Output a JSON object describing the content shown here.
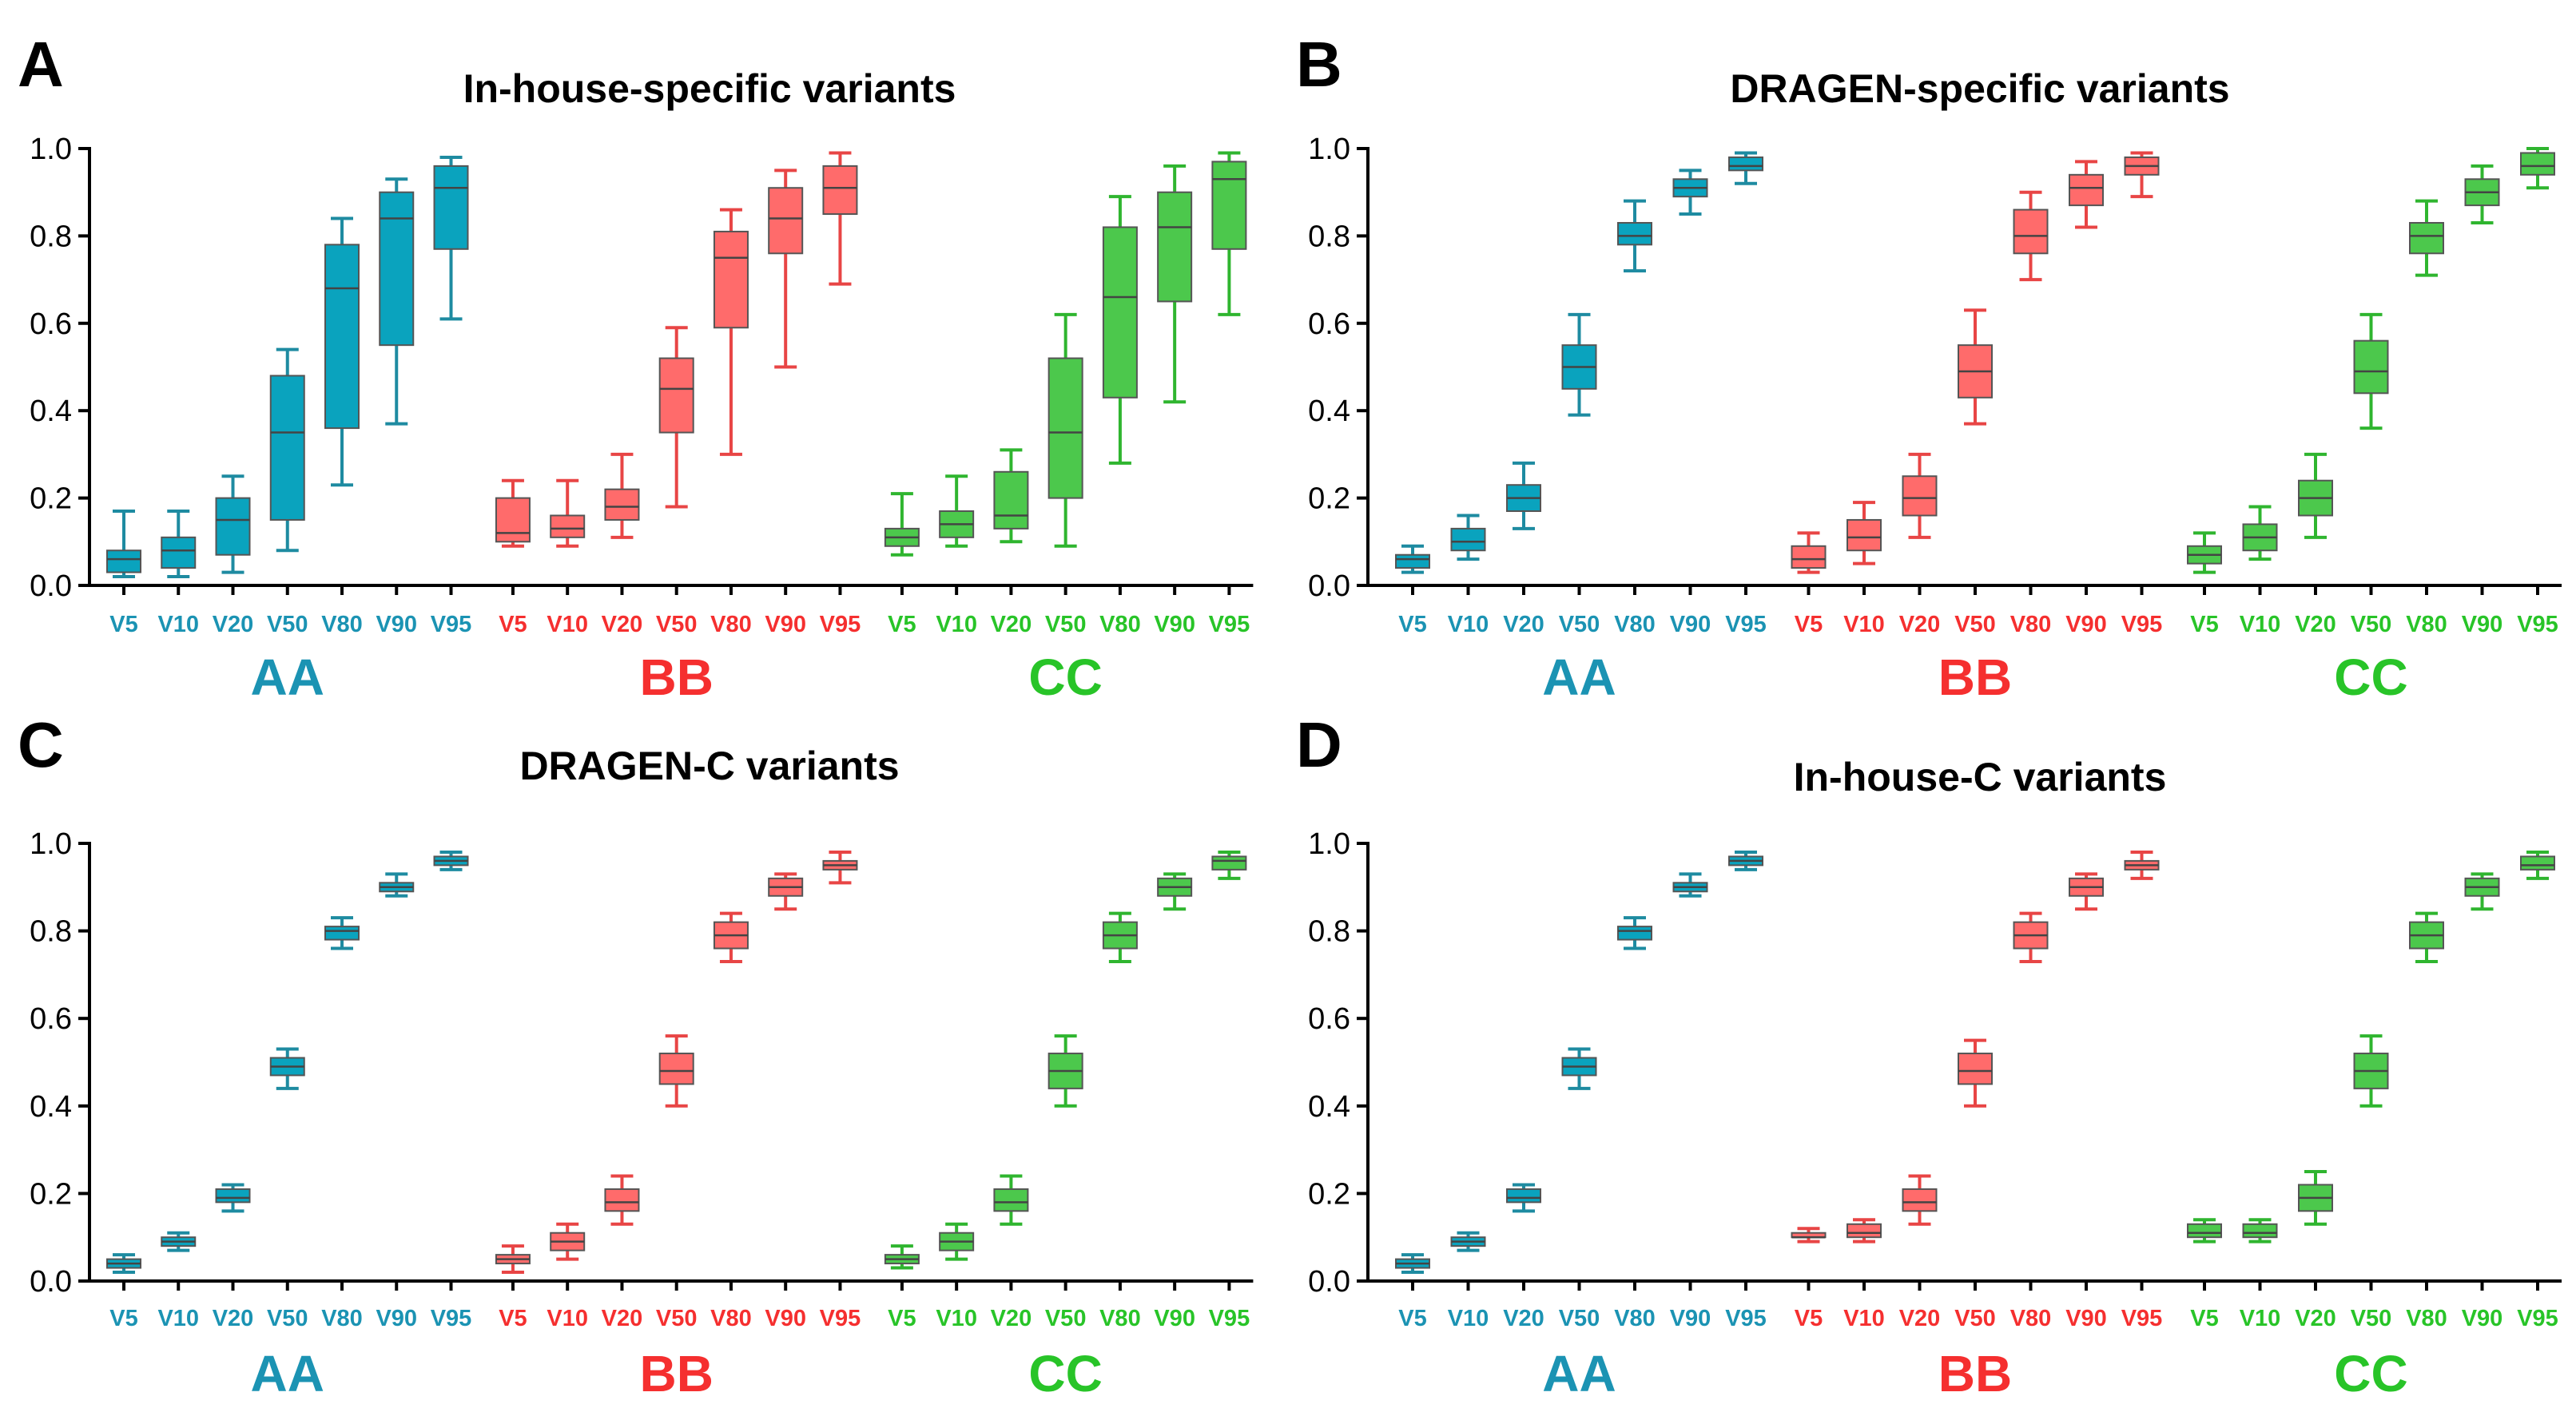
{
  "colors": {
    "AA": {
      "fill": "#0AA3BE",
      "stroke": "#1E8BA1",
      "text": "#1B93B3"
    },
    "BB": {
      "fill": "#FF6B6B",
      "stroke": "#E84545",
      "text": "#F52F2F"
    },
    "CC": {
      "fill": "#4CC84C",
      "stroke": "#2FB52F",
      "text": "#28C428"
    },
    "axis": "#000000",
    "median": "#444444"
  },
  "chart_data": [
    {
      "type": "box",
      "letter": "A",
      "title": "In-house-specific variants",
      "ylim": [
        0,
        1.0
      ],
      "yticks": [
        "0.0",
        "0.2",
        "0.4",
        "0.6",
        "0.8",
        "1.0"
      ],
      "categories": [
        "V5",
        "V10",
        "V20",
        "V50",
        "V80",
        "V90",
        "V95"
      ],
      "groups": [
        {
          "name": "AA",
          "boxes": [
            {
              "label": "V5",
              "min": 0.02,
              "q1": 0.03,
              "median": 0.06,
              "q3": 0.08,
              "max": 0.17
            },
            {
              "label": "V10",
              "min": 0.02,
              "q1": 0.04,
              "median": 0.08,
              "q3": 0.11,
              "max": 0.17
            },
            {
              "label": "V20",
              "min": 0.03,
              "q1": 0.07,
              "median": 0.15,
              "q3": 0.2,
              "max": 0.25
            },
            {
              "label": "V50",
              "min": 0.08,
              "q1": 0.15,
              "median": 0.35,
              "q3": 0.48,
              "max": 0.54
            },
            {
              "label": "V80",
              "min": 0.23,
              "q1": 0.36,
              "median": 0.68,
              "q3": 0.78,
              "max": 0.84
            },
            {
              "label": "V90",
              "min": 0.37,
              "q1": 0.55,
              "median": 0.84,
              "q3": 0.9,
              "max": 0.93
            },
            {
              "label": "V95",
              "min": 0.61,
              "q1": 0.77,
              "median": 0.91,
              "q3": 0.96,
              "max": 0.98
            }
          ]
        },
        {
          "name": "BB",
          "boxes": [
            {
              "label": "V5",
              "min": 0.09,
              "q1": 0.1,
              "median": 0.12,
              "q3": 0.2,
              "max": 0.24
            },
            {
              "label": "V10",
              "min": 0.09,
              "q1": 0.11,
              "median": 0.13,
              "q3": 0.16,
              "max": 0.24
            },
            {
              "label": "V20",
              "min": 0.11,
              "q1": 0.15,
              "median": 0.18,
              "q3": 0.22,
              "max": 0.3
            },
            {
              "label": "V50",
              "min": 0.18,
              "q1": 0.35,
              "median": 0.45,
              "q3": 0.52,
              "max": 0.59
            },
            {
              "label": "V80",
              "min": 0.3,
              "q1": 0.59,
              "median": 0.75,
              "q3": 0.81,
              "max": 0.86
            },
            {
              "label": "V90",
              "min": 0.5,
              "q1": 0.76,
              "median": 0.84,
              "q3": 0.91,
              "max": 0.95
            },
            {
              "label": "V95",
              "min": 0.69,
              "q1": 0.85,
              "median": 0.91,
              "q3": 0.96,
              "max": 0.99
            }
          ]
        },
        {
          "name": "CC",
          "boxes": [
            {
              "label": "V5",
              "min": 0.07,
              "q1": 0.09,
              "median": 0.11,
              "q3": 0.13,
              "max": 0.21
            },
            {
              "label": "V10",
              "min": 0.09,
              "q1": 0.11,
              "median": 0.14,
              "q3": 0.17,
              "max": 0.25
            },
            {
              "label": "V20",
              "min": 0.1,
              "q1": 0.13,
              "median": 0.16,
              "q3": 0.26,
              "max": 0.31
            },
            {
              "label": "V50",
              "min": 0.09,
              "q1": 0.2,
              "median": 0.35,
              "q3": 0.52,
              "max": 0.62
            },
            {
              "label": "V80",
              "min": 0.28,
              "q1": 0.43,
              "median": 0.66,
              "q3": 0.82,
              "max": 0.89
            },
            {
              "label": "V90",
              "min": 0.42,
              "q1": 0.65,
              "median": 0.82,
              "q3": 0.9,
              "max": 0.96
            },
            {
              "label": "V95",
              "min": 0.62,
              "q1": 0.77,
              "median": 0.93,
              "q3": 0.97,
              "max": 0.99
            }
          ]
        }
      ]
    },
    {
      "type": "box",
      "letter": "B",
      "title": "DRAGEN-specific variants",
      "ylim": [
        0,
        1.0
      ],
      "yticks": [
        "0.0",
        "0.2",
        "0.4",
        "0.6",
        "0.8",
        "1.0"
      ],
      "categories": [
        "V5",
        "V10",
        "V20",
        "V50",
        "V80",
        "V90",
        "V95"
      ],
      "groups": [
        {
          "name": "AA",
          "boxes": [
            {
              "label": "V5",
              "min": 0.03,
              "q1": 0.04,
              "median": 0.06,
              "q3": 0.07,
              "max": 0.09
            },
            {
              "label": "V10",
              "min": 0.06,
              "q1": 0.08,
              "median": 0.1,
              "q3": 0.13,
              "max": 0.16
            },
            {
              "label": "V20",
              "min": 0.13,
              "q1": 0.17,
              "median": 0.2,
              "q3": 0.23,
              "max": 0.28
            },
            {
              "label": "V50",
              "min": 0.39,
              "q1": 0.45,
              "median": 0.5,
              "q3": 0.55,
              "max": 0.62
            },
            {
              "label": "V80",
              "min": 0.72,
              "q1": 0.78,
              "median": 0.8,
              "q3": 0.83,
              "max": 0.88
            },
            {
              "label": "V90",
              "min": 0.85,
              "q1": 0.89,
              "median": 0.91,
              "q3": 0.93,
              "max": 0.95
            },
            {
              "label": "V95",
              "min": 0.92,
              "q1": 0.95,
              "median": 0.96,
              "q3": 0.98,
              "max": 0.99
            }
          ]
        },
        {
          "name": "BB",
          "boxes": [
            {
              "label": "V5",
              "min": 0.03,
              "q1": 0.04,
              "median": 0.06,
              "q3": 0.09,
              "max": 0.12
            },
            {
              "label": "V10",
              "min": 0.05,
              "q1": 0.08,
              "median": 0.11,
              "q3": 0.15,
              "max": 0.19
            },
            {
              "label": "V20",
              "min": 0.11,
              "q1": 0.16,
              "median": 0.2,
              "q3": 0.25,
              "max": 0.3
            },
            {
              "label": "V50",
              "min": 0.37,
              "q1": 0.43,
              "median": 0.49,
              "q3": 0.55,
              "max": 0.63
            },
            {
              "label": "V80",
              "min": 0.7,
              "q1": 0.76,
              "median": 0.8,
              "q3": 0.86,
              "max": 0.9
            },
            {
              "label": "V90",
              "min": 0.82,
              "q1": 0.87,
              "median": 0.91,
              "q3": 0.94,
              "max": 0.97
            },
            {
              "label": "V95",
              "min": 0.89,
              "q1": 0.94,
              "median": 0.96,
              "q3": 0.98,
              "max": 0.99
            }
          ]
        },
        {
          "name": "CC",
          "boxes": [
            {
              "label": "V5",
              "min": 0.03,
              "q1": 0.05,
              "median": 0.07,
              "q3": 0.09,
              "max": 0.12
            },
            {
              "label": "V10",
              "min": 0.06,
              "q1": 0.08,
              "median": 0.11,
              "q3": 0.14,
              "max": 0.18
            },
            {
              "label": "V20",
              "min": 0.11,
              "q1": 0.16,
              "median": 0.2,
              "q3": 0.24,
              "max": 0.3
            },
            {
              "label": "V50",
              "min": 0.36,
              "q1": 0.44,
              "median": 0.49,
              "q3": 0.56,
              "max": 0.62
            },
            {
              "label": "V80",
              "min": 0.71,
              "q1": 0.76,
              "median": 0.8,
              "q3": 0.83,
              "max": 0.88
            },
            {
              "label": "V90",
              "min": 0.83,
              "q1": 0.87,
              "median": 0.9,
              "q3": 0.93,
              "max": 0.96
            },
            {
              "label": "V95",
              "min": 0.91,
              "q1": 0.94,
              "median": 0.96,
              "q3": 0.99,
              "max": 1.0
            }
          ]
        }
      ]
    },
    {
      "type": "box",
      "letter": "C",
      "title": "DRAGEN-C variants",
      "ylim": [
        0,
        1.0
      ],
      "yticks": [
        "0.0",
        "0.2",
        "0.4",
        "0.6",
        "0.8",
        "1.0"
      ],
      "categories": [
        "V5",
        "V10",
        "V20",
        "V50",
        "V80",
        "V90",
        "V95"
      ],
      "groups": [
        {
          "name": "AA",
          "boxes": [
            {
              "label": "V5",
              "min": 0.02,
              "q1": 0.03,
              "median": 0.04,
              "q3": 0.05,
              "max": 0.06
            },
            {
              "label": "V10",
              "min": 0.07,
              "q1": 0.08,
              "median": 0.09,
              "q3": 0.1,
              "max": 0.11
            },
            {
              "label": "V20",
              "min": 0.16,
              "q1": 0.18,
              "median": 0.19,
              "q3": 0.21,
              "max": 0.22
            },
            {
              "label": "V50",
              "min": 0.44,
              "q1": 0.47,
              "median": 0.49,
              "q3": 0.51,
              "max": 0.53
            },
            {
              "label": "V80",
              "min": 0.76,
              "q1": 0.78,
              "median": 0.8,
              "q3": 0.81,
              "max": 0.83
            },
            {
              "label": "V90",
              "min": 0.88,
              "q1": 0.89,
              "median": 0.9,
              "q3": 0.91,
              "max": 0.93
            },
            {
              "label": "V95",
              "min": 0.94,
              "q1": 0.95,
              "median": 0.96,
              "q3": 0.97,
              "max": 0.98
            }
          ]
        },
        {
          "name": "BB",
          "boxes": [
            {
              "label": "V5",
              "min": 0.02,
              "q1": 0.04,
              "median": 0.05,
              "q3": 0.06,
              "max": 0.08
            },
            {
              "label": "V10",
              "min": 0.05,
              "q1": 0.07,
              "median": 0.09,
              "q3": 0.11,
              "max": 0.13
            },
            {
              "label": "V20",
              "min": 0.13,
              "q1": 0.16,
              "median": 0.18,
              "q3": 0.21,
              "max": 0.24
            },
            {
              "label": "V50",
              "min": 0.4,
              "q1": 0.45,
              "median": 0.48,
              "q3": 0.52,
              "max": 0.56
            },
            {
              "label": "V80",
              "min": 0.73,
              "q1": 0.76,
              "median": 0.79,
              "q3": 0.82,
              "max": 0.84
            },
            {
              "label": "V90",
              "min": 0.85,
              "q1": 0.88,
              "median": 0.9,
              "q3": 0.92,
              "max": 0.93
            },
            {
              "label": "V95",
              "min": 0.91,
              "q1": 0.94,
              "median": 0.95,
              "q3": 0.96,
              "max": 0.98
            }
          ]
        },
        {
          "name": "CC",
          "boxes": [
            {
              "label": "V5",
              "min": 0.03,
              "q1": 0.04,
              "median": 0.05,
              "q3": 0.06,
              "max": 0.08
            },
            {
              "label": "V10",
              "min": 0.05,
              "q1": 0.07,
              "median": 0.09,
              "q3": 0.11,
              "max": 0.13
            },
            {
              "label": "V20",
              "min": 0.13,
              "q1": 0.16,
              "median": 0.18,
              "q3": 0.21,
              "max": 0.24
            },
            {
              "label": "V50",
              "min": 0.4,
              "q1": 0.44,
              "median": 0.48,
              "q3": 0.52,
              "max": 0.56
            },
            {
              "label": "V80",
              "min": 0.73,
              "q1": 0.76,
              "median": 0.79,
              "q3": 0.82,
              "max": 0.84
            },
            {
              "label": "V90",
              "min": 0.85,
              "q1": 0.88,
              "median": 0.9,
              "q3": 0.92,
              "max": 0.93
            },
            {
              "label": "V95",
              "min": 0.92,
              "q1": 0.94,
              "median": 0.96,
              "q3": 0.97,
              "max": 0.98
            }
          ]
        }
      ]
    },
    {
      "type": "box",
      "letter": "D",
      "title": "In-house-C variants",
      "ylim": [
        0,
        1.0
      ],
      "yticks": [
        "0.0",
        "0.2",
        "0.4",
        "0.6",
        "0.8",
        "1.0"
      ],
      "categories": [
        "V5",
        "V10",
        "V20",
        "V50",
        "V80",
        "V90",
        "V95"
      ],
      "groups": [
        {
          "name": "AA",
          "boxes": [
            {
              "label": "V5",
              "min": 0.02,
              "q1": 0.03,
              "median": 0.04,
              "q3": 0.05,
              "max": 0.06
            },
            {
              "label": "V10",
              "min": 0.07,
              "q1": 0.08,
              "median": 0.09,
              "q3": 0.1,
              "max": 0.11
            },
            {
              "label": "V20",
              "min": 0.16,
              "q1": 0.18,
              "median": 0.19,
              "q3": 0.21,
              "max": 0.22
            },
            {
              "label": "V50",
              "min": 0.44,
              "q1": 0.47,
              "median": 0.49,
              "q3": 0.51,
              "max": 0.53
            },
            {
              "label": "V80",
              "min": 0.76,
              "q1": 0.78,
              "median": 0.8,
              "q3": 0.81,
              "max": 0.83
            },
            {
              "label": "V90",
              "min": 0.88,
              "q1": 0.89,
              "median": 0.9,
              "q3": 0.91,
              "max": 0.93
            },
            {
              "label": "V95",
              "min": 0.94,
              "q1": 0.95,
              "median": 0.96,
              "q3": 0.97,
              "max": 0.98
            }
          ]
        },
        {
          "name": "BB",
          "boxes": [
            {
              "label": "V5",
              "min": 0.09,
              "q1": 0.1,
              "median": 0.1,
              "q3": 0.11,
              "max": 0.12
            },
            {
              "label": "V10",
              "min": 0.09,
              "q1": 0.1,
              "median": 0.11,
              "q3": 0.13,
              "max": 0.14
            },
            {
              "label": "V20",
              "min": 0.13,
              "q1": 0.16,
              "median": 0.18,
              "q3": 0.21,
              "max": 0.24
            },
            {
              "label": "V50",
              "min": 0.4,
              "q1": 0.45,
              "median": 0.48,
              "q3": 0.52,
              "max": 0.55
            },
            {
              "label": "V80",
              "min": 0.73,
              "q1": 0.76,
              "median": 0.79,
              "q3": 0.82,
              "max": 0.84
            },
            {
              "label": "V90",
              "min": 0.85,
              "q1": 0.88,
              "median": 0.9,
              "q3": 0.92,
              "max": 0.93
            },
            {
              "label": "V95",
              "min": 0.92,
              "q1": 0.94,
              "median": 0.95,
              "q3": 0.96,
              "max": 0.98
            }
          ]
        },
        {
          "name": "CC",
          "boxes": [
            {
              "label": "V5",
              "min": 0.09,
              "q1": 0.1,
              "median": 0.11,
              "q3": 0.13,
              "max": 0.14
            },
            {
              "label": "V10",
              "min": 0.09,
              "q1": 0.1,
              "median": 0.11,
              "q3": 0.13,
              "max": 0.14
            },
            {
              "label": "V20",
              "min": 0.13,
              "q1": 0.16,
              "median": 0.19,
              "q3": 0.22,
              "max": 0.25
            },
            {
              "label": "V50",
              "min": 0.4,
              "q1": 0.44,
              "median": 0.48,
              "q3": 0.52,
              "max": 0.56
            },
            {
              "label": "V80",
              "min": 0.73,
              "q1": 0.76,
              "median": 0.79,
              "q3": 0.82,
              "max": 0.84
            },
            {
              "label": "V90",
              "min": 0.85,
              "q1": 0.88,
              "median": 0.9,
              "q3": 0.92,
              "max": 0.93
            },
            {
              "label": "V95",
              "min": 0.92,
              "q1": 0.94,
              "median": 0.95,
              "q3": 0.97,
              "max": 0.98
            }
          ]
        }
      ]
    }
  ]
}
